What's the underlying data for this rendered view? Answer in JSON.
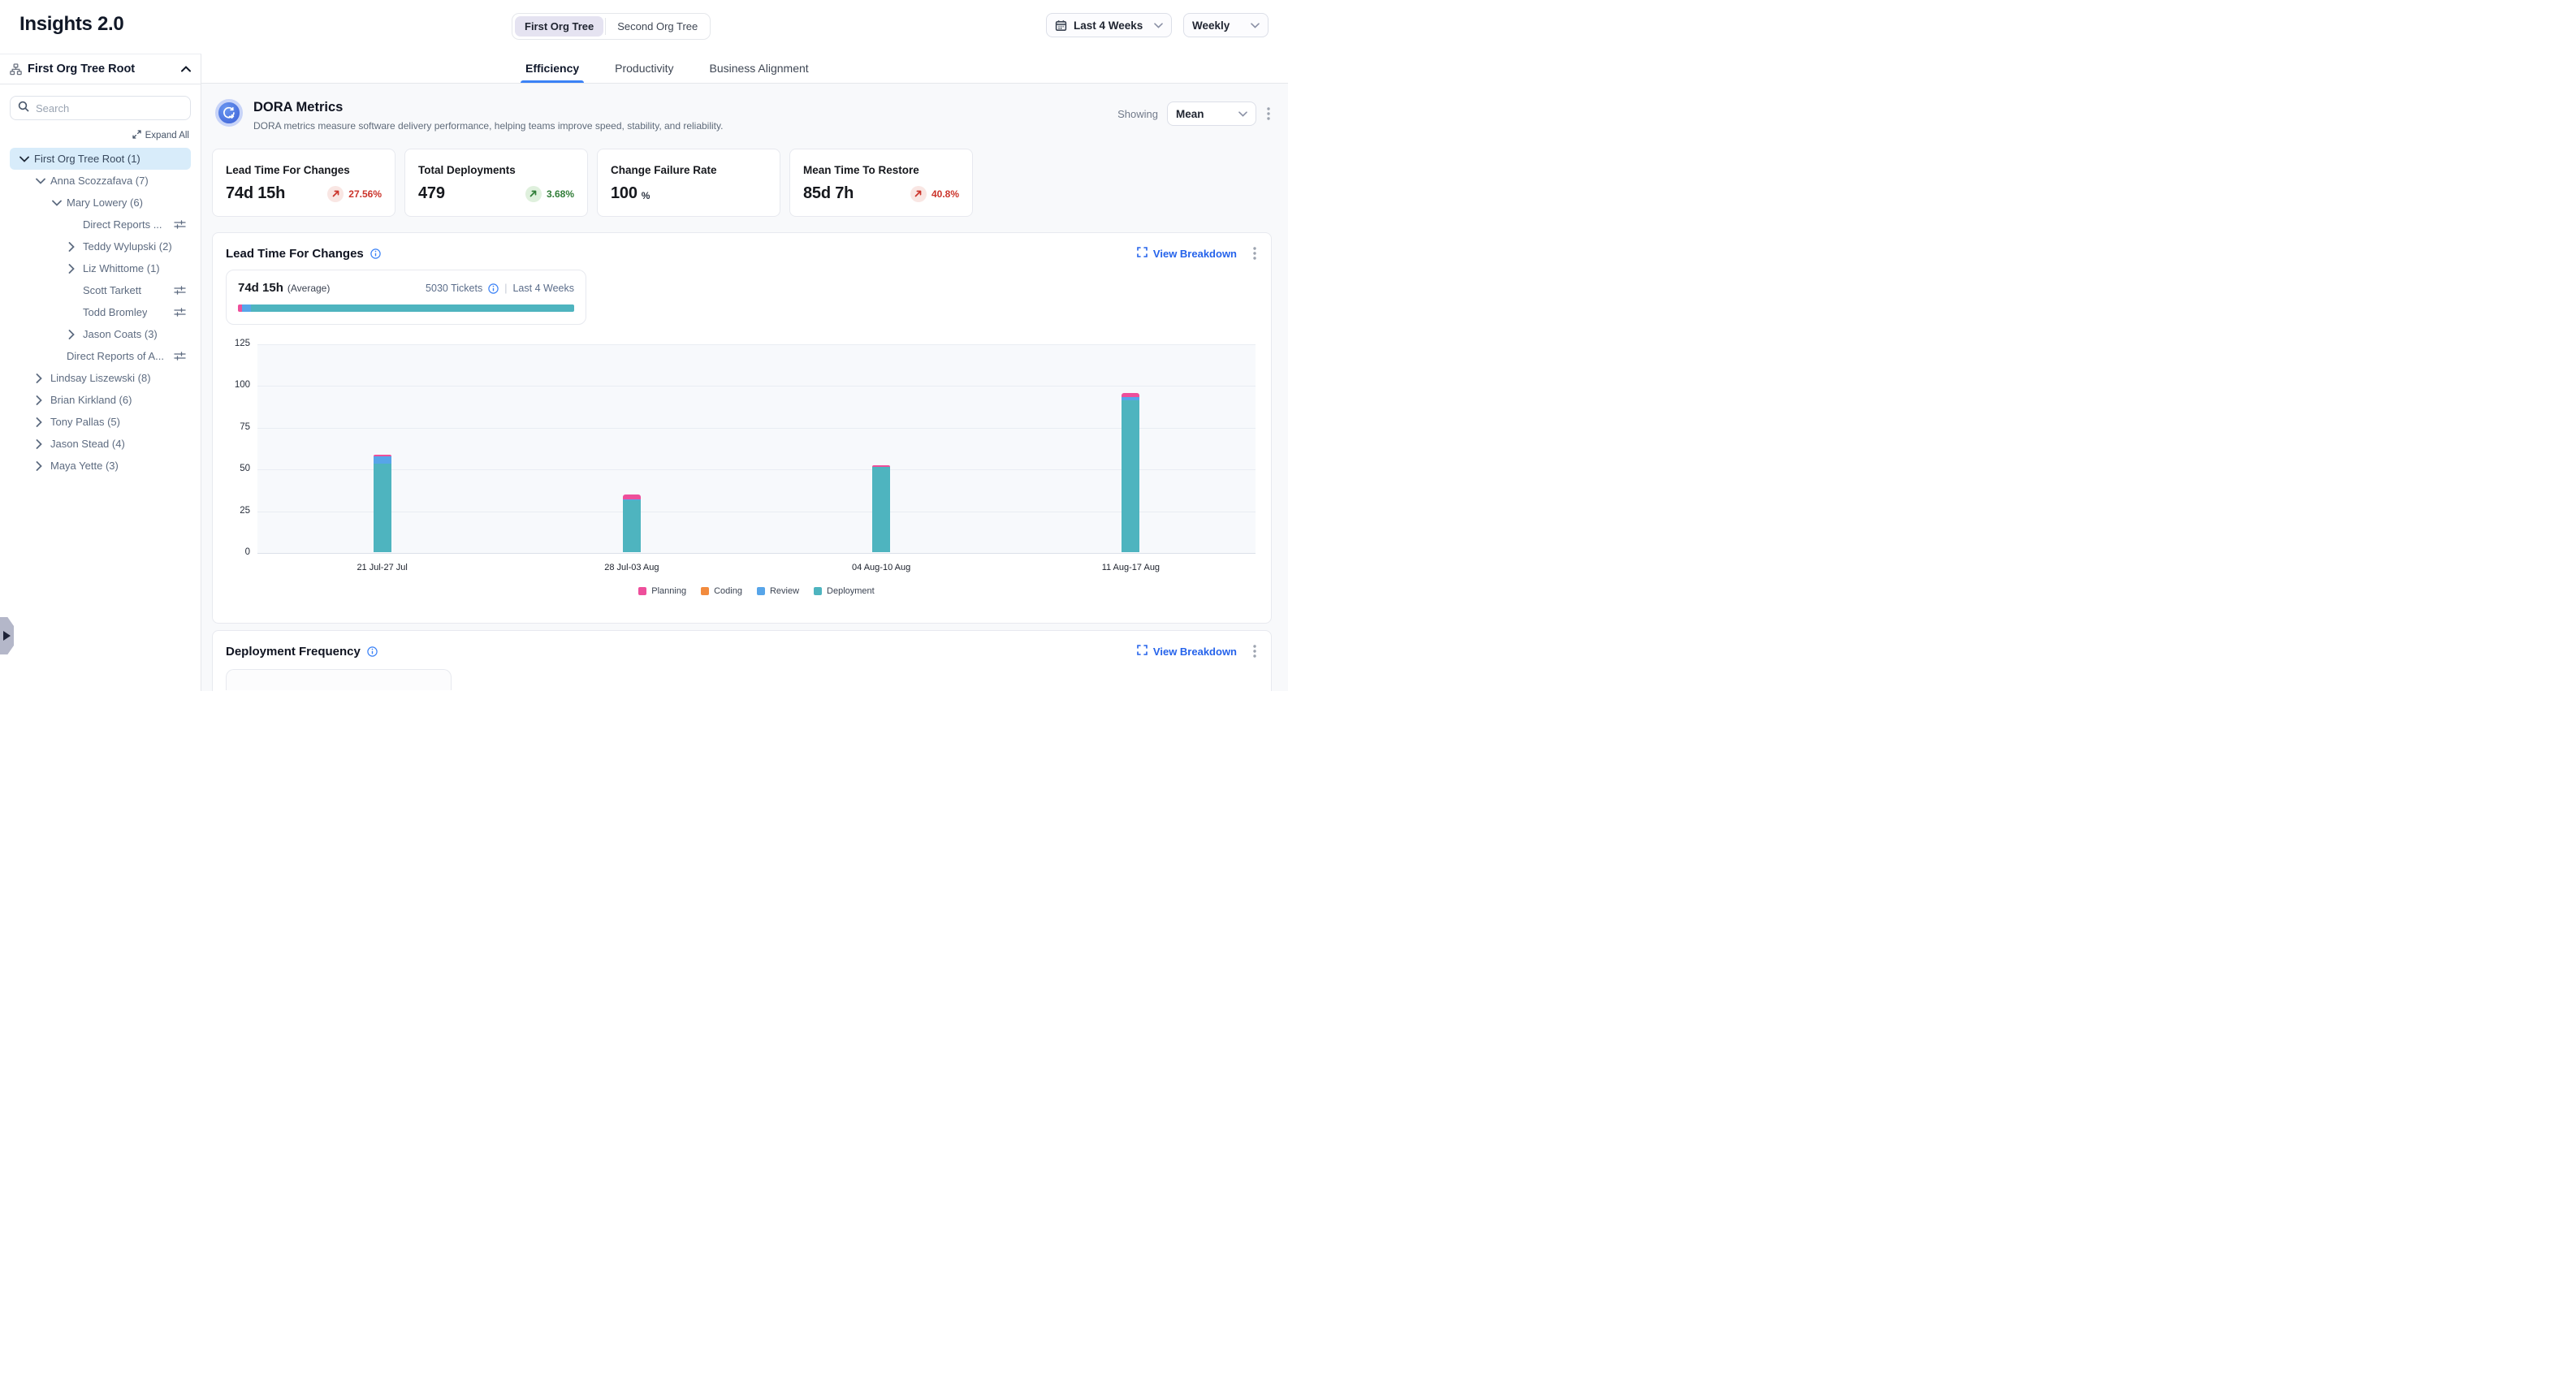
{
  "app": {
    "title": "Insights 2.0"
  },
  "topbar": {
    "org_tree_toggle": {
      "options": [
        {
          "label": "First Org Tree",
          "selected": true
        },
        {
          "label": "Second Org Tree",
          "selected": false
        }
      ]
    },
    "date_range": {
      "label": "Last 4 Weeks",
      "icon": "calendar-icon"
    },
    "granularity": {
      "label": "Weekly"
    }
  },
  "sidebar": {
    "header": {
      "title": "First Org Tree Root",
      "icon": "org-tree-icon",
      "collapse_icon": "chevron-up-icon"
    },
    "search": {
      "placeholder": "Search",
      "icon": "search-icon"
    },
    "expand_all_label": "Expand All",
    "tree": [
      {
        "label": "First Org Tree Root (1)",
        "level": 0,
        "chevron": "down",
        "selected": true,
        "filter_icon": false
      },
      {
        "label": "Anna Scozzafava (7)",
        "level": 1,
        "chevron": "down",
        "selected": false,
        "filter_icon": false
      },
      {
        "label": "Mary Lowery (6)",
        "level": 2,
        "chevron": "down",
        "selected": false,
        "filter_icon": false
      },
      {
        "label": "Direct Reports ...",
        "level": 3,
        "chevron": "none",
        "selected": false,
        "filter_icon": true
      },
      {
        "label": "Teddy Wylupski (2)",
        "level": 3,
        "chevron": "right",
        "selected": false,
        "filter_icon": false
      },
      {
        "label": "Liz Whittome (1)",
        "level": 3,
        "chevron": "right",
        "selected": false,
        "filter_icon": false
      },
      {
        "label": "Scott Tarkett",
        "level": 3,
        "chevron": "none",
        "selected": false,
        "filter_icon": true
      },
      {
        "label": "Todd Bromley",
        "level": 3,
        "chevron": "none",
        "selected": false,
        "filter_icon": true
      },
      {
        "label": "Jason Coats (3)",
        "level": 3,
        "chevron": "right",
        "selected": false,
        "filter_icon": false
      },
      {
        "label": "Direct Reports of A...",
        "level": 2,
        "chevron": "none",
        "selected": false,
        "filter_icon": true
      },
      {
        "label": "Lindsay Liszewski (8)",
        "level": 1,
        "chevron": "right",
        "selected": false,
        "filter_icon": false
      },
      {
        "label": "Brian Kirkland (6)",
        "level": 1,
        "chevron": "right",
        "selected": false,
        "filter_icon": false
      },
      {
        "label": "Tony Pallas (5)",
        "level": 1,
        "chevron": "right",
        "selected": false,
        "filter_icon": false
      },
      {
        "label": "Jason Stead (4)",
        "level": 1,
        "chevron": "right",
        "selected": false,
        "filter_icon": false
      },
      {
        "label": "Maya Yette (3)",
        "level": 1,
        "chevron": "right",
        "selected": false,
        "filter_icon": false
      }
    ]
  },
  "tabs": [
    {
      "label": "Efficiency",
      "active": true
    },
    {
      "label": "Productivity",
      "active": false
    },
    {
      "label": "Business Alignment",
      "active": false
    }
  ],
  "dora": {
    "title": "DORA Metrics",
    "subtitle": "DORA metrics measure software delivery performance, helping teams improve speed, stability, and reliability.",
    "icon": "dora-cycle-icon",
    "showing_label": "Showing",
    "showing_value": "Mean",
    "cards": [
      {
        "title": "Lead Time For Changes",
        "value": "74d 15h",
        "suffix": "",
        "delta": "27.56%",
        "trend": "up-bad"
      },
      {
        "title": "Total Deployments",
        "value": "479",
        "suffix": "",
        "delta": "3.68%",
        "trend": "up-good"
      },
      {
        "title": "Change Failure Rate",
        "value": "100",
        "suffix": "%",
        "delta": "",
        "trend": "none"
      },
      {
        "title": "Mean Time To Restore",
        "value": "85d 7h",
        "suffix": "",
        "delta": "40.8%",
        "trend": "up-bad"
      }
    ]
  },
  "lead_time_section": {
    "title": "Lead Time For Changes",
    "view_breakdown_label": "View Breakdown",
    "summary": {
      "value": "74d 15h",
      "value_suffix": "(Average)",
      "tickets": "5030 Tickets",
      "pipe": "|",
      "range": "Last 4 Weeks",
      "bar_segments": [
        {
          "name": "Planning",
          "color": "#ee4f9b",
          "pct": 1.2
        },
        {
          "name": "Review",
          "color": "#57a5e9",
          "pct": 2.7
        },
        {
          "name": "Deployment",
          "color": "#4eb4bf",
          "pct": 96.1
        }
      ]
    }
  },
  "chart_data": {
    "type": "bar",
    "stacked": true,
    "title": "Lead Time For Changes",
    "categories": [
      "21 Jul-27 Jul",
      "28 Jul-03 Aug",
      "04 Aug-10 Aug",
      "11 Aug-17 Aug"
    ],
    "series": [
      {
        "name": "Planning",
        "color": "#ee4f9b",
        "values": [
          0.8,
          2.8,
          1.0,
          2.5
        ]
      },
      {
        "name": "Coding",
        "color": "#f28b3e",
        "values": [
          0,
          0,
          0,
          0
        ]
      },
      {
        "name": "Review",
        "color": "#57a5e9",
        "values": [
          4.5,
          0.8,
          0,
          2.0
        ]
      },
      {
        "name": "Deployment",
        "color": "#4eb4bf",
        "values": [
          53,
          31,
          51,
          91
        ]
      }
    ],
    "stack_order": [
      "Deployment",
      "Review",
      "Coding",
      "Planning"
    ],
    "ylim": [
      0,
      125
    ],
    "yticks": [
      0,
      25,
      50,
      75,
      100,
      125
    ],
    "xlabel": "",
    "ylabel": "",
    "grid": true,
    "legend_position": "bottom"
  },
  "deployment_frequency_section": {
    "title": "Deployment Frequency",
    "view_breakdown_label": "View Breakdown"
  },
  "colors": {
    "accent_blue": "#3b82f6",
    "link_blue": "#2563eb",
    "bad_red": "#cb342b",
    "good_green": "#317d38",
    "selected_row_bg": "#d8ecfa",
    "page_bg": "#f8f9fb",
    "planning_pink": "#ee4f9b",
    "coding_orange": "#f28b3e",
    "review_blue": "#57a5e9",
    "deployment_teal": "#4eb4bf"
  }
}
